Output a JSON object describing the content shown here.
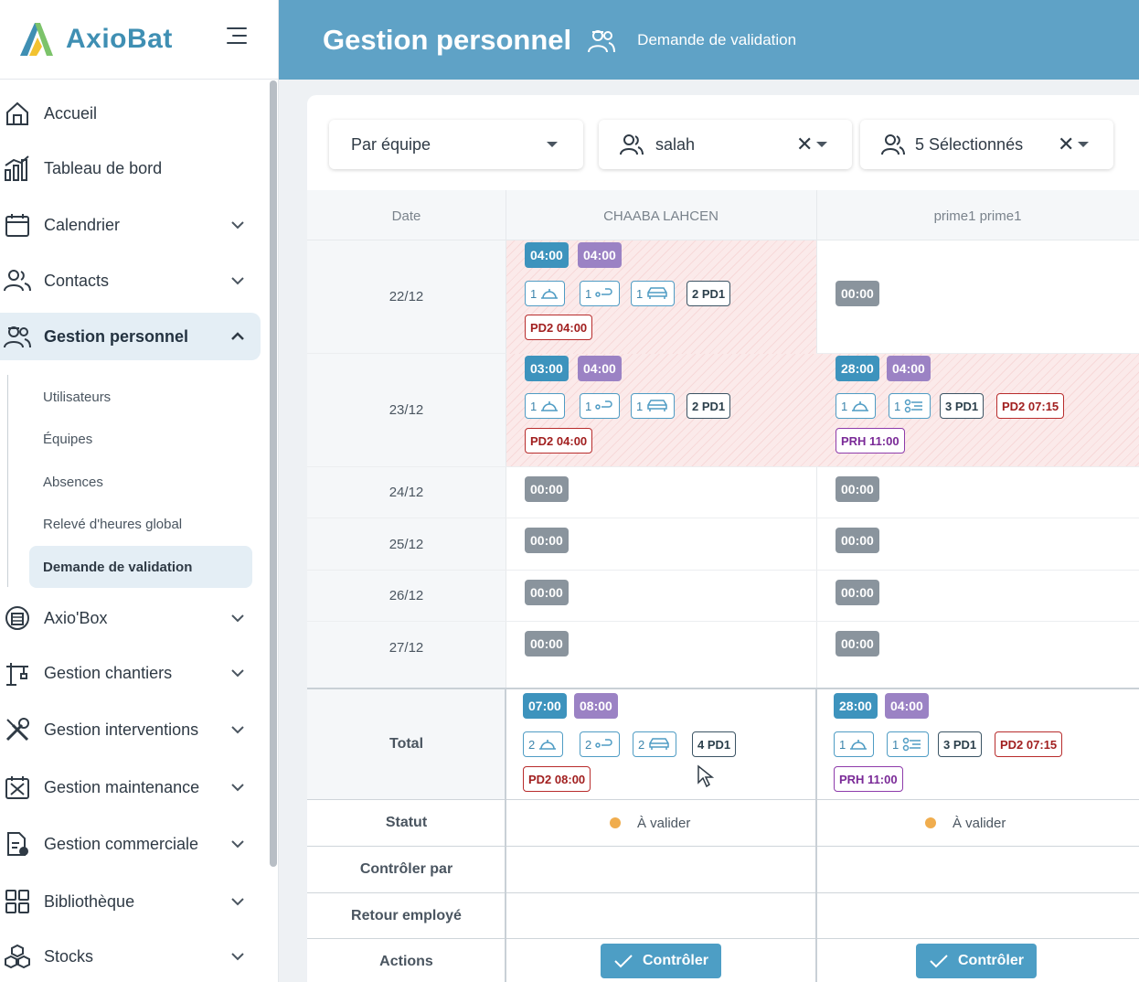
{
  "app": {
    "name": "AxioBat"
  },
  "sidebar": {
    "items": [
      {
        "label": "Accueil",
        "icon": "home-icon"
      },
      {
        "label": "Tableau de bord",
        "icon": "bar-chart-icon"
      },
      {
        "label": "Calendrier",
        "icon": "calendar-icon"
      },
      {
        "label": "Contacts",
        "icon": "users-icon"
      },
      {
        "label": "Gestion personnel",
        "icon": "staff-icon"
      },
      {
        "label": "Axio'Box",
        "icon": "box-icon"
      },
      {
        "label": "Gestion chantiers",
        "icon": "crane-icon"
      },
      {
        "label": "Gestion interventions",
        "icon": "tools-icon"
      },
      {
        "label": "Gestion maintenance",
        "icon": "maintenance-icon"
      },
      {
        "label": "Gestion commerciale",
        "icon": "document-icon"
      },
      {
        "label": "Bibliothèque",
        "icon": "grid-icon"
      },
      {
        "label": "Stocks",
        "icon": "cubes-icon"
      }
    ],
    "sub_items": [
      "Utilisateurs",
      "Équipes",
      "Absences",
      "Relevé d'heures global",
      "Demande de validation"
    ]
  },
  "header": {
    "title": "Gestion personnel",
    "subtitle": "Demande de validation"
  },
  "filters": {
    "grouping": "Par équipe",
    "user": "salah",
    "selection": "5 Sélectionnés"
  },
  "table": {
    "date_header": "Date",
    "columns": [
      "CHAABA LAHCEN",
      "prime1 prime1"
    ],
    "dates": [
      "22/12",
      "23/12",
      "24/12",
      "25/12",
      "26/12",
      "27/12"
    ],
    "zero": "00:00",
    "r22": {
      "c1_a": "04:00",
      "c1_b": "04:00",
      "c1_meal": "1",
      "c1_trip": "1",
      "c1_car": "1",
      "c1_pd1": "2 PD1",
      "c1_pd2": "PD2 04:00",
      "c2": "00:00"
    },
    "r23": {
      "c1_a": "03:00",
      "c1_b": "04:00",
      "c1_meal": "1",
      "c1_trip": "1",
      "c1_car": "1",
      "c1_pd1": "2 PD1",
      "c1_pd2": "PD2 04:00",
      "c2_a": "28:00",
      "c2_b": "04:00",
      "c2_meal": "1",
      "c2_gear": "1",
      "c2_pd1": "3 PD1",
      "c2_pd2": "PD2 07:15",
      "c2_prh": "PRH 11:00"
    },
    "total": {
      "label": "Total",
      "c1_a": "07:00",
      "c1_b": "08:00",
      "c1_meal": "2",
      "c1_trip": "2",
      "c1_car": "2",
      "c1_pd1": "4 PD1",
      "c1_pd2": "PD2 08:00",
      "c2_a": "28:00",
      "c2_b": "04:00",
      "c2_meal": "1",
      "c2_gear": "1",
      "c2_pd1": "3 PD1",
      "c2_pd2": "PD2 07:15",
      "c2_prh": "PRH 11:00"
    },
    "status_label": "Statut",
    "status_value": "À valider",
    "controlled_label": "Contrôler par",
    "return_label": "Retour employé",
    "actions_label": "Actions",
    "control_button": "Contrôler"
  },
  "colors": {
    "accent": "#5fa2c6",
    "status_pending": "#f0ad4e"
  }
}
